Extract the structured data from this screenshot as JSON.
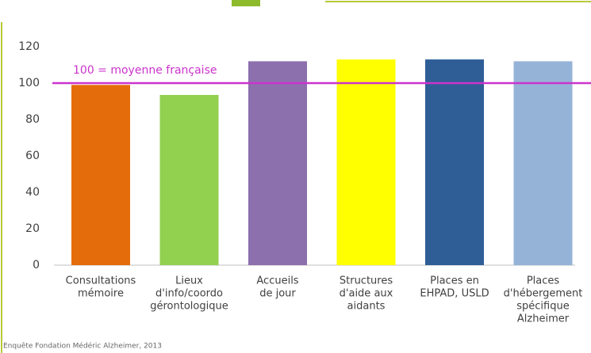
{
  "chart_data": {
    "type": "bar",
    "categories": [
      [
        "Consultations",
        "mémoire"
      ],
      [
        "Lieux",
        "d'info/coordo",
        "gérontologique"
      ],
      [
        "Accueils",
        "de jour"
      ],
      [
        "Structures",
        "d'aide aux",
        "aidants"
      ],
      [
        "Places en",
        "EHPAD, USLD"
      ],
      [
        "Places",
        "d'hébergement",
        "spécifique",
        "Alzheimer"
      ]
    ],
    "values": [
      99,
      93.5,
      112,
      113,
      113,
      112
    ],
    "colors": [
      "#e46c0a",
      "#92d050",
      "#8c70ad",
      "#ffff00",
      "#2f5e96",
      "#95b3d7"
    ],
    "ylim": [
      0,
      120
    ],
    "yticks": [
      0,
      20,
      40,
      60,
      80,
      100,
      120
    ],
    "reference_line": {
      "value": 100,
      "label": "100 = moyenne française",
      "color": "#cc33cc"
    },
    "source": "Enquête Fondation Médéric Alzheimer, 2013"
  }
}
